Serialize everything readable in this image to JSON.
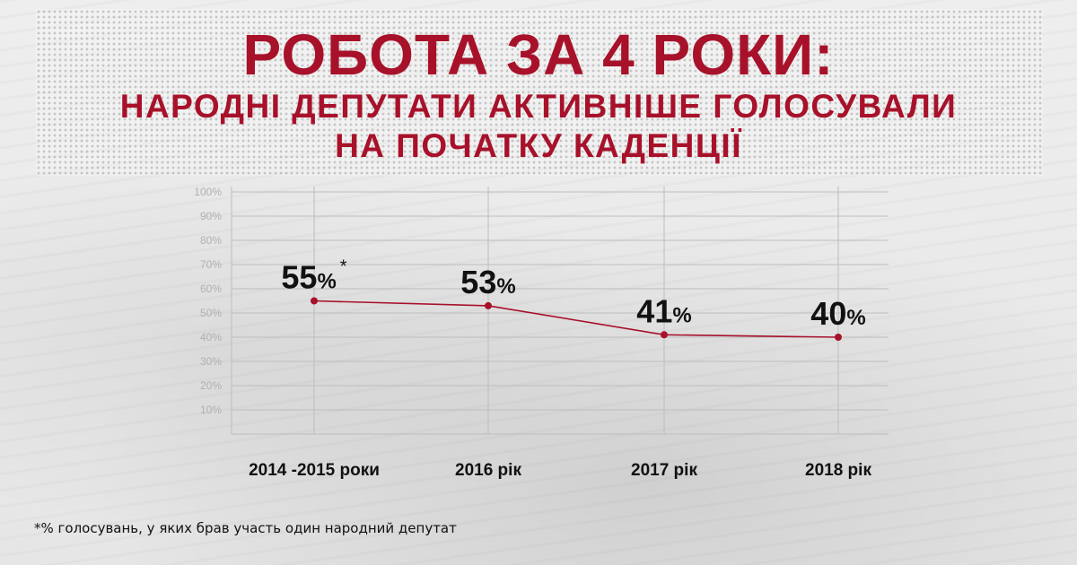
{
  "header": {
    "title": "РОБОТА ЗА 4 РОКИ:",
    "subtitle_line1": "НАРОДНІ ДЕПУТАТИ АКТИВНІШЕ ГОЛОСУВАЛИ",
    "subtitle_line2": "НА ПОЧАТКУ КАДЕНЦІЇ"
  },
  "footnote": "*% голосувань, у яких брав участь один народний депутат",
  "colors": {
    "title": "#a8112a",
    "line": "#a8112a",
    "point": "#a8112a",
    "grid": "#bdbdbd"
  },
  "chart_data": {
    "type": "line",
    "categories": [
      "2014 -2015 роки",
      "2016 рік",
      "2017 рік",
      "2018 рік"
    ],
    "series": [
      {
        "values": [
          55,
          53,
          41,
          40
        ]
      }
    ],
    "value_labels": [
      "55",
      "53",
      "41",
      "40"
    ],
    "label_unit": "%",
    "annotation": "*",
    "yticks": [
      "100%",
      "90%",
      "80%",
      "70%",
      "60%",
      "50%",
      "40%",
      "30%",
      "20%",
      "10%"
    ],
    "ylim": [
      0,
      100
    ],
    "grid": true
  }
}
